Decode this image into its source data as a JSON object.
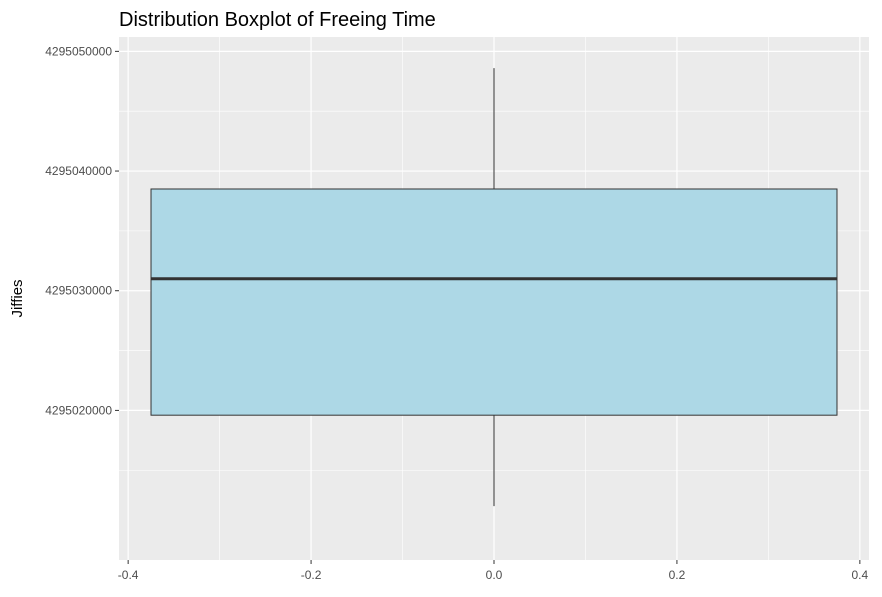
{
  "chart_data": {
    "type": "boxplot",
    "title": "Distribution Boxplot of Freeing Time",
    "xlabel": "",
    "ylabel": "Jiffies",
    "xlim": [
      -0.41,
      0.41
    ],
    "ylim": [
      4295007500,
      4295051200
    ],
    "x_ticks": [
      -0.4,
      -0.2,
      0.0,
      0.2,
      0.4
    ],
    "x_tick_labels": [
      "-0.4",
      "-0.2",
      "0.0",
      "0.2",
      "0.4"
    ],
    "y_ticks": [
      4295020000,
      4295030000,
      4295040000,
      4295050000
    ],
    "y_tick_labels": [
      "4295020000",
      "4295030000",
      "4295040000",
      "4295050000"
    ],
    "box": {
      "x_center": 0.0,
      "x_min": -0.375,
      "x_max": 0.375,
      "whisker_low": 4295012000,
      "q1": 4295019600,
      "median": 4295031000,
      "q3": 4295038500,
      "whisker_high": 4295048600
    },
    "fill_color": "#add8e6",
    "outline_color": "#333333",
    "panel_background": "#ebebeb",
    "grid": true
  }
}
